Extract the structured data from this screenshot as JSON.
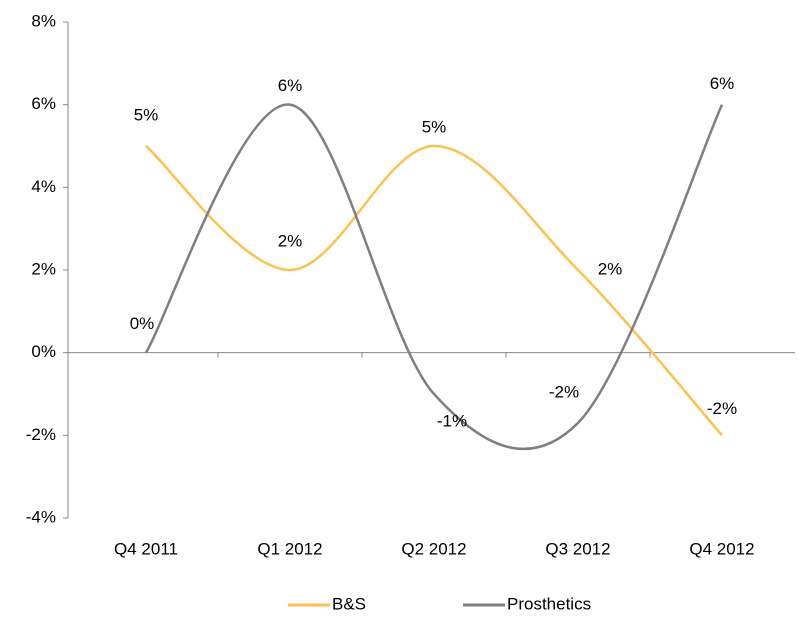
{
  "chart_data": {
    "type": "line",
    "categories": [
      "Q4 2011",
      "Q1 2012",
      "Q2 2012",
      "Q3 2012",
      "Q4 2012"
    ],
    "series": [
      {
        "name": "B&S",
        "color": "#fdc24d",
        "values": [
          5,
          2,
          5,
          2,
          -2
        ],
        "value_labels": [
          "5%",
          "2%",
          "5%",
          "2%",
          "-2%"
        ]
      },
      {
        "name": "Prosthetics",
        "color": "#7f7f7f",
        "values": [
          0,
          6,
          -1,
          -1.7,
          6
        ],
        "value_labels": [
          "0%",
          "6%",
          "-1%",
          "-2%",
          "6%"
        ]
      }
    ],
    "ylim": [
      -4,
      8
    ],
    "yticks": [
      {
        "value": -4,
        "label": "-4%"
      },
      {
        "value": -2,
        "label": "-2%"
      },
      {
        "value": 0,
        "label": "0%"
      },
      {
        "value": 2,
        "label": "2%"
      },
      {
        "value": 4,
        "label": "4%"
      },
      {
        "value": 6,
        "label": "6%"
      },
      {
        "value": 8,
        "label": "8%"
      }
    ],
    "smooth": true,
    "grid": false,
    "legend": "bottom"
  }
}
